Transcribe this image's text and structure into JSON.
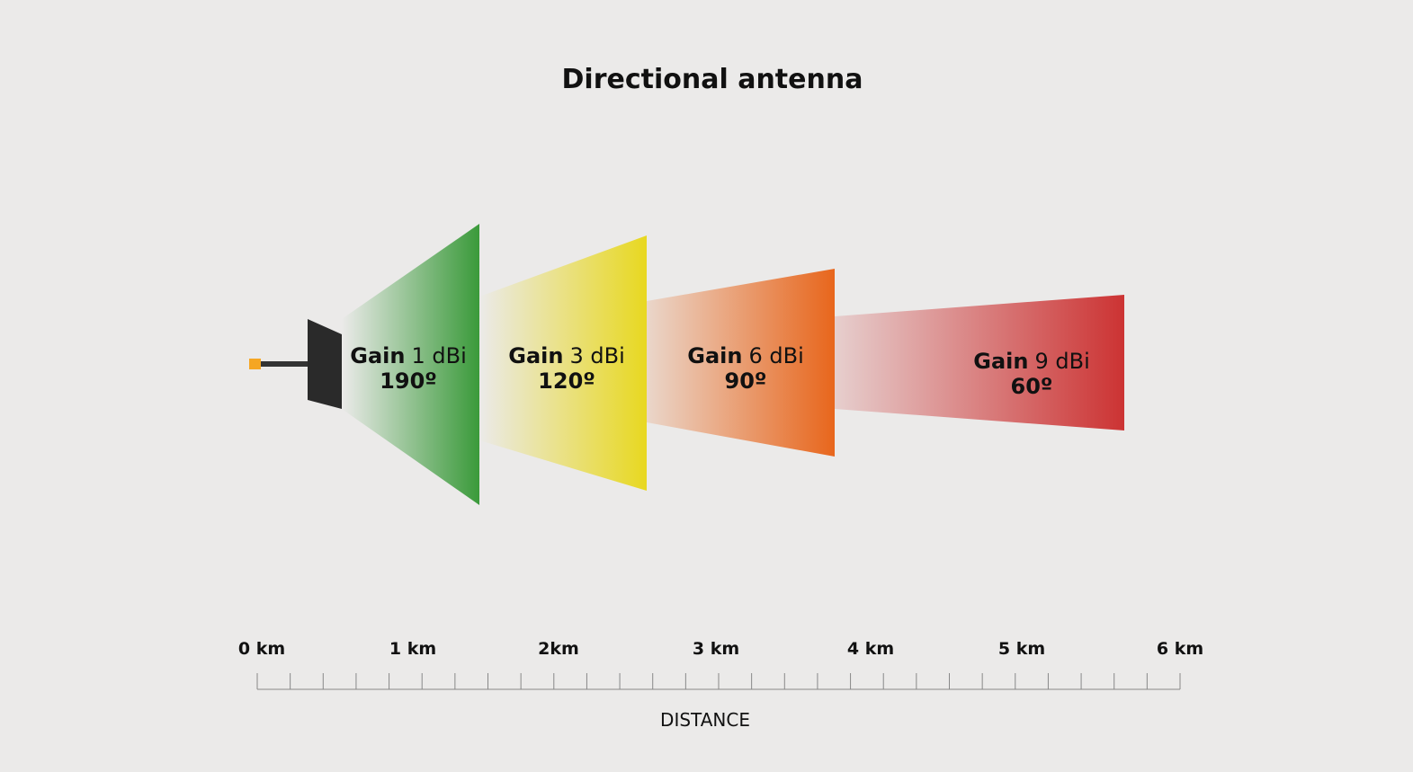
{
  "title": "Directional antenna",
  "beams": [
    {
      "label": "Gain",
      "gain": "1 dBi",
      "angle": "190º"
    },
    {
      "label": "Gain",
      "gain": "3 dBi",
      "angle": "120º"
    },
    {
      "label": "Gain",
      "gain": "6 dBi",
      "angle": "90º"
    },
    {
      "label": "Gain",
      "gain": "9 dBi",
      "angle": "60º"
    }
  ],
  "scale": {
    "labels": [
      "0 km",
      "1 km",
      "2km",
      "3 km",
      "4 km",
      "5 km",
      "6 km"
    ],
    "axis_label": "DISTANCE"
  }
}
